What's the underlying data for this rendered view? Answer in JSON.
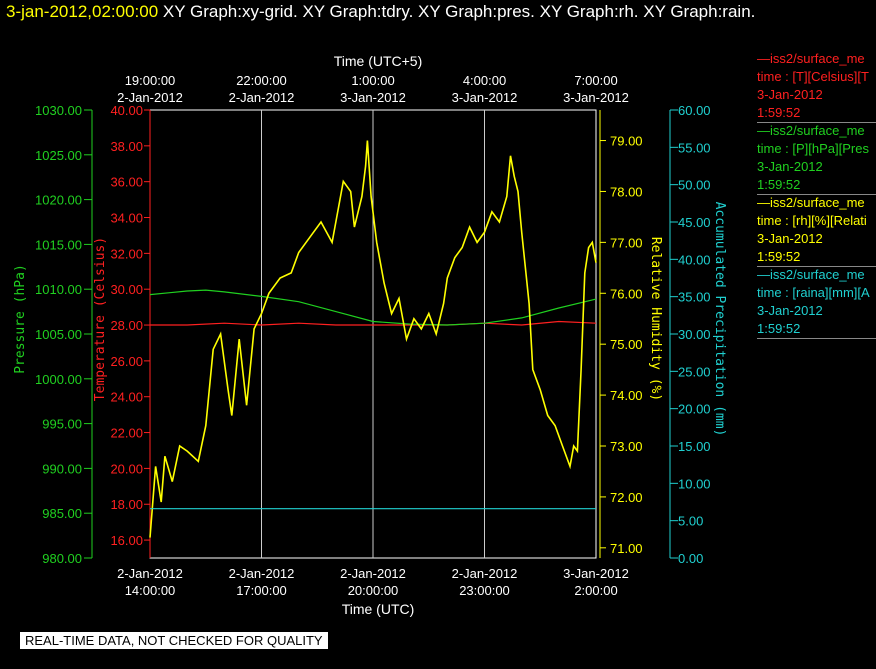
{
  "header": {
    "timestamp": "3-jan-2012,02:00:00",
    "graphs": "XY Graph:xy-grid.  XY Graph:tdry.  XY Graph:pres.  XY Graph:rh.  XY Graph:rain."
  },
  "notice": "REAL-TIME DATA, NOT CHECKED FOR QUALITY",
  "colors": {
    "temp": "#ff2020",
    "pres": "#20d020",
    "rh": "#ffff00",
    "rain": "#20d0d0",
    "grid": "#ffffff",
    "bg": "#000000"
  },
  "legend": [
    {
      "name": "—iss2/surface_me",
      "var": "time : [T][Celsius][T",
      "date": "3-Jan-2012",
      "time": "1:59:52",
      "color": "#ff2020"
    },
    {
      "name": "—iss2/surface_me",
      "var": "time : [P][hPa][Pres",
      "date": "3-Jan-2012",
      "time": "1:59:52",
      "color": "#20d020"
    },
    {
      "name": "—iss2/surface_me",
      "var": "time : [rh][%][Relati",
      "date": "3-Jan-2012",
      "time": "1:59:52",
      "color": "#ffff00"
    },
    {
      "name": "—iss2/surface_me",
      "var": "time : [raina][mm][A",
      "date": "3-Jan-2012",
      "time": "1:59:52",
      "color": "#20d0d0"
    }
  ],
  "chart_data": {
    "type": "line",
    "x_unit": "hours since 2-Jan-2012 14:00 UTC",
    "xlim": [
      0,
      12
    ],
    "xlabel": "Time (UTC)",
    "xlabel_top": "Time (UTC+5)",
    "x_ticks_bottom": [
      {
        "x": 0,
        "date": "2-Jan-2012",
        "time": "14:00:00"
      },
      {
        "x": 3,
        "date": "2-Jan-2012",
        "time": "17:00:00"
      },
      {
        "x": 6,
        "date": "2-Jan-2012",
        "time": "20:00:00"
      },
      {
        "x": 9,
        "date": "2-Jan-2012",
        "time": "23:00:00"
      },
      {
        "x": 12,
        "date": "3-Jan-2012",
        "time": "2:00:00"
      }
    ],
    "x_ticks_top": [
      {
        "x": 0,
        "time": "19:00:00",
        "date": "2-Jan-2012"
      },
      {
        "x": 3,
        "time": "22:00:00",
        "date": "2-Jan-2012"
      },
      {
        "x": 6,
        "time": "1:00:00",
        "date": "3-Jan-2012"
      },
      {
        "x": 9,
        "time": "4:00:00",
        "date": "3-Jan-2012"
      },
      {
        "x": 12,
        "time": "7:00:00",
        "date": "3-Jan-2012"
      }
    ],
    "grid": true,
    "axes": {
      "pres": {
        "label": "Pressure (hPa)",
        "lim": [
          980,
          1030
        ],
        "ticks": [
          "980.00",
          "985.00",
          "990.00",
          "995.00",
          "1000.00",
          "1005.00",
          "1010.00",
          "1015.00",
          "1020.00",
          "1025.00",
          "1030.00"
        ]
      },
      "temp": {
        "label": "Temperature (Celsius)",
        "lim": [
          15,
          40
        ],
        "ticks": [
          "16.00",
          "18.00",
          "20.00",
          "22.00",
          "24.00",
          "26.00",
          "28.00",
          "30.00",
          "32.00",
          "34.00",
          "36.00",
          "38.00",
          "40.00"
        ]
      },
      "rh": {
        "label": "Relative Humidity (%)",
        "lim": [
          70.8,
          79.6
        ],
        "ticks": [
          "71.00",
          "72.00",
          "73.00",
          "74.00",
          "75.00",
          "76.00",
          "77.00",
          "78.00",
          "79.00"
        ]
      },
      "rain": {
        "label": "Accumulated Precipitation (mm)",
        "lim": [
          0,
          60
        ],
        "ticks": [
          "0.00",
          "5.00",
          "10.00",
          "15.00",
          "20.00",
          "25.00",
          "30.00",
          "35.00",
          "40.00",
          "45.00",
          "50.00",
          "55.00",
          "60.00"
        ]
      }
    },
    "series": [
      {
        "key": "temp",
        "x": [
          0,
          0.5,
          1,
          2,
          3,
          4,
          5,
          6,
          7,
          8,
          9,
          10,
          11,
          12
        ],
        "values": [
          28.0,
          28.0,
          28.0,
          28.1,
          28.0,
          28.1,
          28.0,
          28.0,
          28.0,
          28.0,
          28.1,
          28.0,
          28.2,
          28.1
        ]
      },
      {
        "key": "pres",
        "x": [
          0,
          0.5,
          1,
          1.5,
          2,
          3,
          4,
          5,
          6,
          7,
          8,
          9,
          10,
          11,
          12
        ],
        "values": [
          1009.4,
          1009.6,
          1009.8,
          1009.9,
          1009.7,
          1009.2,
          1008.6,
          1007.5,
          1006.4,
          1006.1,
          1006.0,
          1006.2,
          1006.8,
          1007.9,
          1008.9
        ]
      },
      {
        "key": "rh",
        "x": [
          0,
          0.15,
          0.3,
          0.4,
          0.6,
          0.8,
          1.0,
          1.3,
          1.5,
          1.7,
          1.9,
          2.1,
          2.2,
          2.4,
          2.6,
          2.8,
          3.0,
          3.2,
          3.5,
          3.8,
          4.0,
          4.3,
          4.6,
          4.9,
          5.2,
          5.4,
          5.5,
          5.7,
          5.8,
          5.85,
          5.95,
          6.1,
          6.3,
          6.5,
          6.7,
          6.9,
          7.1,
          7.3,
          7.5,
          7.7,
          7.9,
          8.0,
          8.2,
          8.4,
          8.6,
          8.8,
          9.0,
          9.2,
          9.4,
          9.6,
          9.7,
          9.8,
          9.9,
          10.0,
          10.2,
          10.3,
          10.5,
          10.7,
          10.9,
          11.1,
          11.3,
          11.4,
          11.5,
          11.6,
          11.7,
          11.8,
          11.9,
          12.0
        ],
        "values": [
          71.2,
          72.6,
          71.9,
          72.8,
          72.3,
          73.0,
          72.9,
          72.7,
          73.4,
          74.9,
          75.2,
          74.1,
          73.6,
          75.1,
          73.8,
          75.3,
          75.6,
          76.0,
          76.3,
          76.4,
          76.8,
          77.1,
          77.4,
          77.0,
          78.2,
          78.0,
          77.3,
          77.9,
          78.5,
          79.0,
          77.9,
          77.0,
          76.2,
          75.6,
          75.9,
          75.1,
          75.5,
          75.3,
          75.6,
          75.2,
          75.8,
          76.3,
          76.7,
          76.9,
          77.3,
          77.0,
          77.2,
          77.6,
          77.4,
          77.9,
          78.7,
          78.3,
          78.0,
          77.2,
          75.8,
          74.5,
          74.1,
          73.6,
          73.4,
          73.0,
          72.6,
          73.0,
          72.9,
          74.5,
          76.4,
          76.9,
          77.0,
          76.6
        ]
      },
      {
        "key": "rain",
        "x": [
          0,
          1,
          2,
          3,
          4,
          5,
          6,
          7,
          8,
          9,
          10,
          11,
          12
        ],
        "values": [
          6.6,
          6.6,
          6.6,
          6.6,
          6.6,
          6.6,
          6.6,
          6.6,
          6.6,
          6.6,
          6.6,
          6.6,
          6.6
        ]
      }
    ]
  }
}
